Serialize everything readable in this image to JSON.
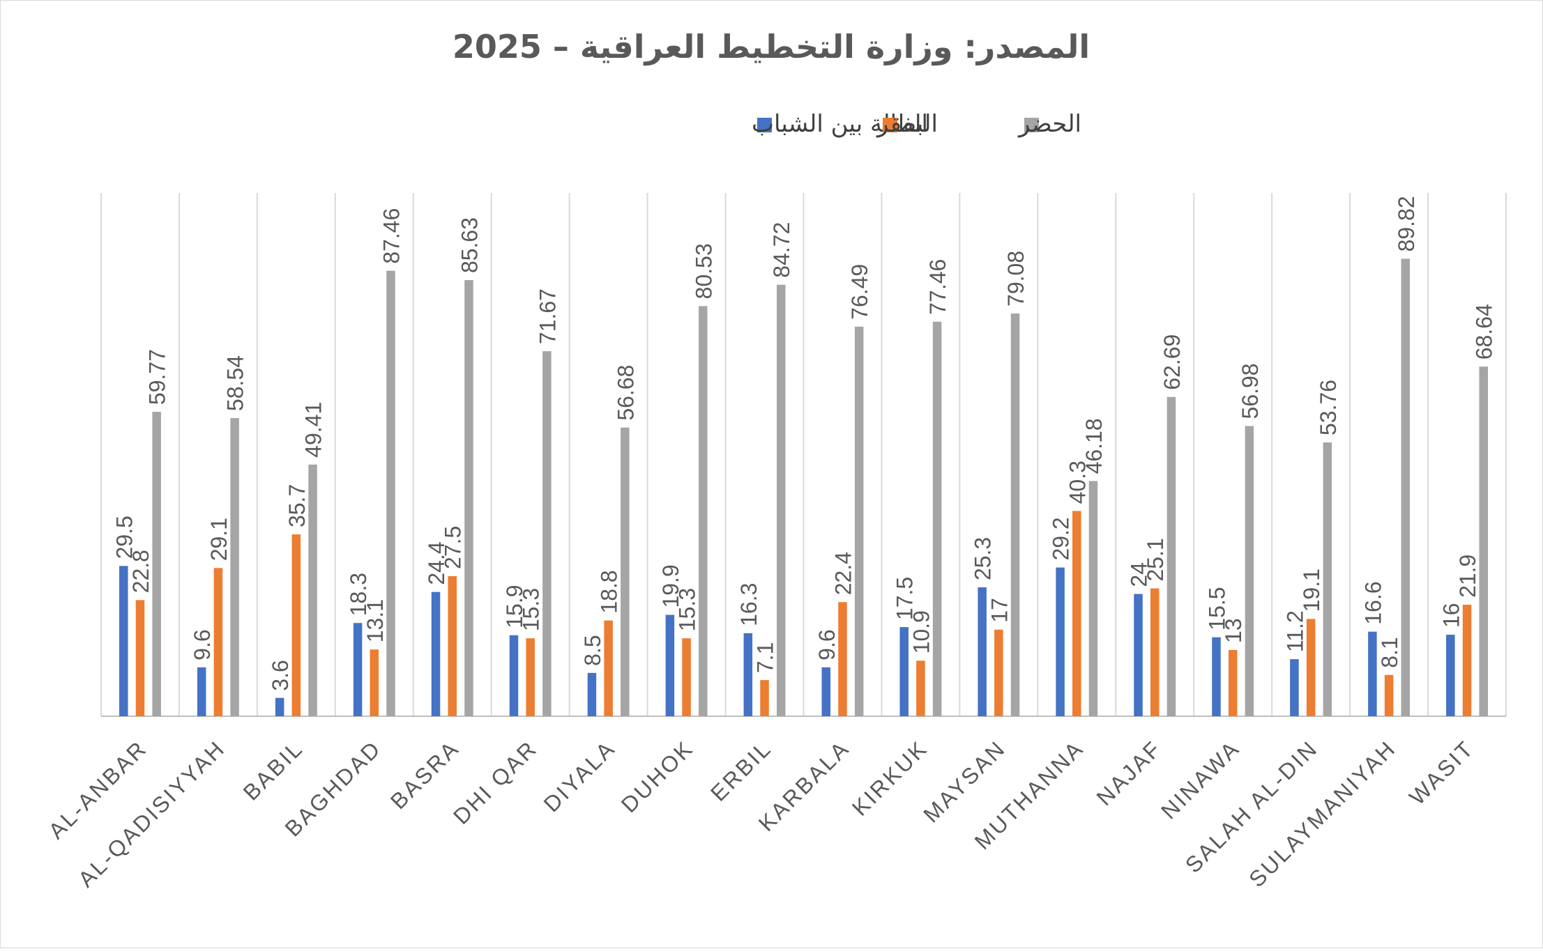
{
  "chart_data": {
    "type": "bar",
    "title": "المصدر: وزارة التخطيط العراقية – 2025",
    "xlabel": "",
    "ylabel": "",
    "ylim": [
      0,
      100
    ],
    "grid": "vertical",
    "legend_position": "top",
    "categories": [
      "AL-ANBAR",
      "AL-QADISIYYAH",
      "BABIL",
      "BAGHDAD",
      "BASRA",
      "DHI QAR",
      "DIYALA",
      "DUHOK",
      "ERBIL",
      "KARBALA",
      "KIRKUK",
      "MAYSAN",
      "MUTHANNA",
      "NAJAF",
      "NINAWA",
      "SALAH AL-DIN",
      "SULAYMANIYAH",
      "WASIT"
    ],
    "series": [
      {
        "name": "البطالة بين الشباب",
        "color": "#4472c4",
        "values": [
          29.5,
          9.6,
          3.6,
          18.3,
          24.4,
          15.9,
          8.5,
          19.9,
          16.3,
          9.6,
          17.5,
          25.3,
          29.2,
          24,
          15.5,
          11.2,
          16.6,
          16
        ]
      },
      {
        "name": "الفقر",
        "color": "#ed7d31",
        "values": [
          22.8,
          29.1,
          35.7,
          13.1,
          27.5,
          15.3,
          18.8,
          15.3,
          7.1,
          22.4,
          10.9,
          17,
          40.3,
          25.1,
          13,
          19.1,
          8.1,
          21.9
        ]
      },
      {
        "name": "الحضر",
        "color": "#a5a5a5",
        "values": [
          59.77,
          58.54,
          49.41,
          87.46,
          85.63,
          71.67,
          56.68,
          80.53,
          84.72,
          76.49,
          77.46,
          79.08,
          46.18,
          62.69,
          56.98,
          53.76,
          89.82,
          68.64
        ]
      }
    ]
  }
}
